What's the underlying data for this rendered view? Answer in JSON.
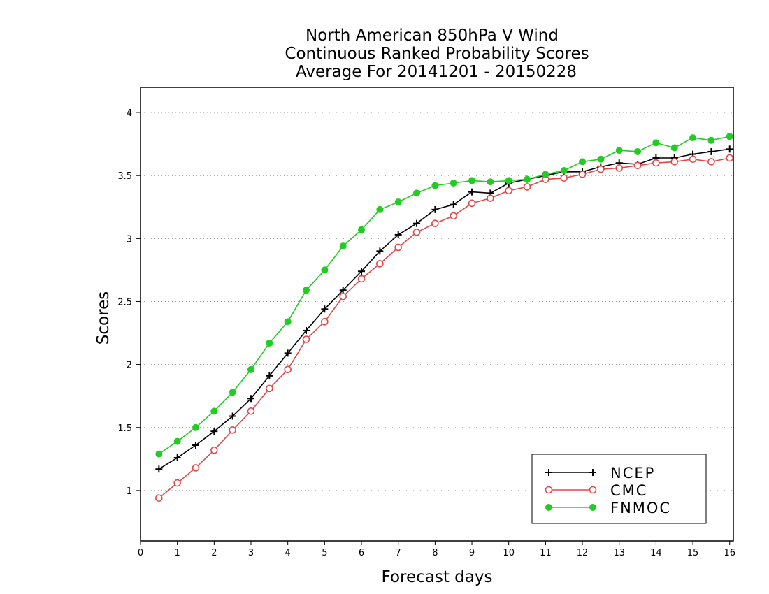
{
  "chart_data": {
    "type": "line",
    "title": [
      "North American 850hPa V Wind",
      "Continuous Ranked Probability Scores",
      "Average For 20141201 - 20150228"
    ],
    "xlabel": "Forecast days",
    "ylabel": "Scores",
    "xlim": [
      0,
      16.1
    ],
    "ylim": [
      0.6,
      4.2
    ],
    "xticks": [
      0,
      1,
      2,
      3,
      4,
      5,
      6,
      7,
      8,
      9,
      10,
      11,
      12,
      13,
      14,
      15,
      16
    ],
    "yticks": [
      1,
      1.5,
      2,
      2.5,
      3,
      3.5,
      4
    ],
    "ytick_labels": [
      "1",
      "1.5",
      "2",
      "2.5",
      "3",
      "3.5",
      "4"
    ],
    "grid": "horizontal dotted",
    "legend_position": "bottom-right",
    "x": [
      0.5,
      1,
      1.5,
      2,
      2.5,
      3,
      3.5,
      4,
      4.5,
      5,
      5.5,
      6,
      6.5,
      7,
      7.5,
      8,
      8.5,
      9,
      9.5,
      10,
      10.5,
      11,
      11.5,
      12,
      12.5,
      13,
      13.5,
      14,
      14.5,
      15,
      15.5,
      16
    ],
    "series": [
      {
        "name": "NCEP",
        "color": "#000000",
        "marker": "plus",
        "values": [
          1.17,
          1.26,
          1.36,
          1.47,
          1.59,
          1.73,
          1.91,
          2.09,
          2.27,
          2.44,
          2.59,
          2.74,
          2.9,
          3.03,
          3.12,
          3.23,
          3.27,
          3.37,
          3.36,
          3.44,
          3.47,
          3.5,
          3.53,
          3.53,
          3.57,
          3.6,
          3.59,
          3.64,
          3.64,
          3.67,
          3.69,
          3.71
        ]
      },
      {
        "name": "CMC",
        "color": "#e04848",
        "marker": "open-circle",
        "values": [
          0.94,
          1.06,
          1.18,
          1.32,
          1.48,
          1.63,
          1.81,
          1.96,
          2.2,
          2.34,
          2.54,
          2.68,
          2.8,
          2.93,
          3.05,
          3.12,
          3.18,
          3.28,
          3.32,
          3.38,
          3.41,
          3.47,
          3.48,
          3.51,
          3.55,
          3.56,
          3.58,
          3.6,
          3.61,
          3.63,
          3.61,
          3.64
        ]
      },
      {
        "name": "FNMOC",
        "color": "#22cc22",
        "marker": "filled-circle",
        "values": [
          1.29,
          1.39,
          1.5,
          1.63,
          1.78,
          1.96,
          2.17,
          2.34,
          2.59,
          2.75,
          2.94,
          3.07,
          3.23,
          3.29,
          3.36,
          3.42,
          3.44,
          3.46,
          3.45,
          3.46,
          3.47,
          3.51,
          3.54,
          3.61,
          3.63,
          3.7,
          3.69,
          3.76,
          3.72,
          3.8,
          3.78,
          3.81
        ]
      }
    ]
  }
}
